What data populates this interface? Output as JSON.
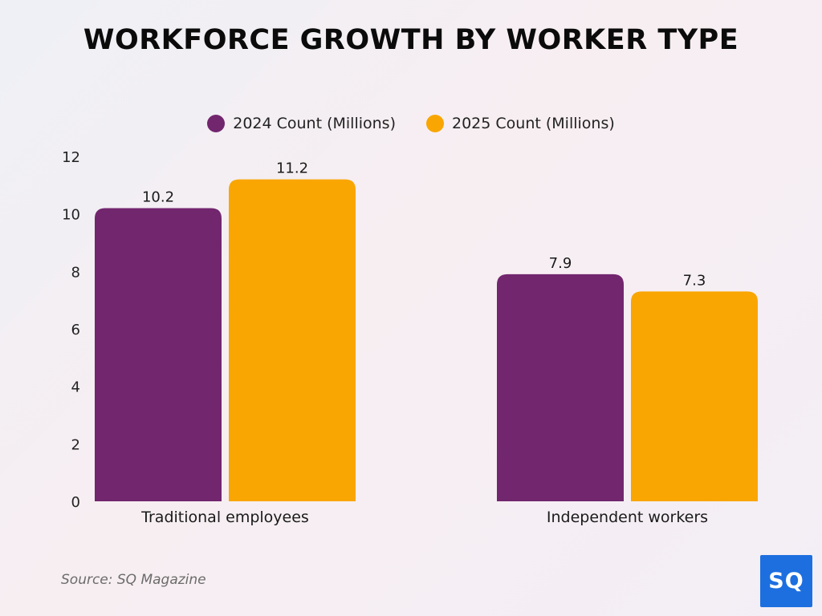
{
  "chart_data": {
    "type": "bar",
    "title": "WORKFORCE GROWTH BY WORKER TYPE",
    "categories": [
      "Traditional employees",
      "Independent workers"
    ],
    "series": [
      {
        "name": "2024 Count (Millions)",
        "values": [
          10.2,
          7.9
        ],
        "color": "#72266e"
      },
      {
        "name": "2025 Count (Millions)",
        "values": [
          11.2,
          7.3
        ],
        "color": "#f9a602"
      }
    ],
    "xlabel": "",
    "ylabel": "",
    "ylim": [
      0,
      12
    ],
    "yticks": [
      0,
      2,
      4,
      6,
      8,
      10,
      12
    ],
    "grid": false,
    "legend_position": "top"
  },
  "source": "Source: SQ Magazine",
  "logo_text": "SQ",
  "colors": {
    "series_2024": "#72266e",
    "series_2025": "#f9a602",
    "logo_bg": "#1d6fe0"
  }
}
